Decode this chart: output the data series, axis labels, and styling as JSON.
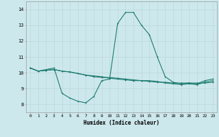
{
  "xlabel": "Humidex (Indice chaleur)",
  "xlim": [
    -0.5,
    23.5
  ],
  "ylim": [
    7.5,
    14.5
  ],
  "xticks": [
    0,
    1,
    2,
    3,
    4,
    5,
    6,
    7,
    8,
    9,
    10,
    11,
    12,
    13,
    14,
    15,
    16,
    17,
    18,
    19,
    20,
    21,
    22,
    23
  ],
  "yticks": [
    8,
    9,
    10,
    11,
    12,
    13,
    14
  ],
  "bg_color": "#cde8ec",
  "grid_color": "#b8d8dc",
  "line_color": "#1a7a6e",
  "line1_x": [
    0,
    1,
    2,
    3,
    4,
    5,
    6,
    7,
    8,
    9,
    10,
    11,
    12,
    13,
    14,
    15,
    16,
    17,
    18,
    19,
    20,
    21,
    22,
    23
  ],
  "line1_y": [
    10.3,
    10.1,
    10.2,
    10.3,
    8.7,
    8.4,
    8.2,
    8.1,
    8.5,
    9.5,
    9.6,
    13.1,
    13.8,
    13.8,
    13.0,
    12.4,
    11.0,
    9.75,
    9.4,
    9.3,
    9.35,
    9.3,
    9.5,
    9.6
  ],
  "line2_x": [
    0,
    1,
    2,
    3,
    4,
    5,
    6,
    7,
    8,
    9,
    10,
    11,
    12,
    13,
    14,
    15,
    16,
    17,
    18,
    19,
    20,
    21,
    22,
    23
  ],
  "line2_y": [
    10.3,
    10.1,
    10.15,
    10.2,
    10.1,
    10.05,
    9.95,
    9.85,
    9.8,
    9.75,
    9.65,
    9.6,
    9.55,
    9.5,
    9.5,
    9.45,
    9.4,
    9.4,
    9.35,
    9.35,
    9.35,
    9.35,
    9.35,
    9.4
  ],
  "line3_x": [
    0,
    1,
    2,
    3,
    4,
    5,
    6,
    7,
    8,
    9,
    10,
    11,
    12,
    13,
    14,
    15,
    16,
    17,
    18,
    19,
    20,
    21,
    22,
    23
  ],
  "line3_y": [
    10.3,
    10.1,
    10.15,
    10.2,
    10.1,
    10.05,
    9.95,
    9.85,
    9.75,
    9.7,
    9.7,
    9.65,
    9.6,
    9.55,
    9.5,
    9.5,
    9.45,
    9.35,
    9.3,
    9.25,
    9.3,
    9.25,
    9.4,
    9.5
  ],
  "marker_size": 2.0,
  "line_width": 0.8,
  "tick_fontsize": 4.5,
  "xlabel_fontsize": 5.5
}
